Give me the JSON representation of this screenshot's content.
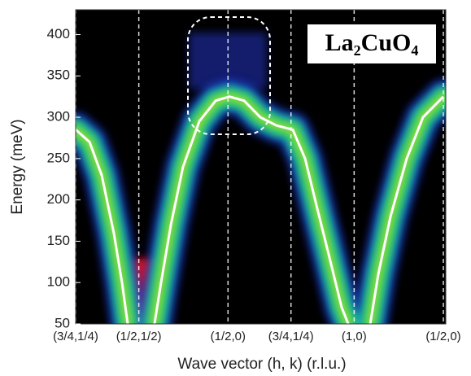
{
  "chart_data": {
    "type": "line",
    "title": "La₂CuO₄",
    "x_label": "Wave vector (h, k) (r.l.u.)",
    "y_label": "Energy (meV)",
    "x": [
      0,
      0.078,
      0.146,
      0.214,
      0.26,
      0.292,
      null,
      0.442,
      0.479,
      0.534,
      0.602,
      0.693,
      0.785,
      0.862,
      0.944,
      1.035,
      1.126,
      1.217,
      1.286,
      1.354,
      1.423,
      1.491,
      1.528,
      null,
      1.651,
      1.696,
      1.765,
      1.856,
      1.947,
      2.061
    ],
    "series": [
      {
        "color": "#ffffff",
        "values": [
          285,
          270,
          230,
          160,
          100,
          50,
          null,
          50,
          100,
          170,
          240,
          295,
          320,
          325,
          320,
          300,
          290,
          285,
          250,
          190,
          130,
          70,
          50,
          null,
          50,
          110,
          180,
          250,
          300,
          325
        ]
      }
    ],
    "xlim": [
      0,
      2.061
    ],
    "xticks": [
      {
        "value": 0,
        "label": "(3/4,1/4)"
      },
      {
        "value": 0.354,
        "label": "(1/2,1/2)"
      },
      {
        "value": 0.854,
        "label": "(1/2,0)"
      },
      {
        "value": 1.207,
        "label": "(3/4,1/4)"
      },
      {
        "value": 1.561,
        "label": "(1,0)"
      },
      {
        "value": 2.061,
        "label": "(1/2,0)"
      }
    ],
    "ylim": [
      50,
      430
    ],
    "yticks": [
      50,
      100,
      150,
      200,
      250,
      300,
      350,
      400
    ],
    "grid": true
  }
}
